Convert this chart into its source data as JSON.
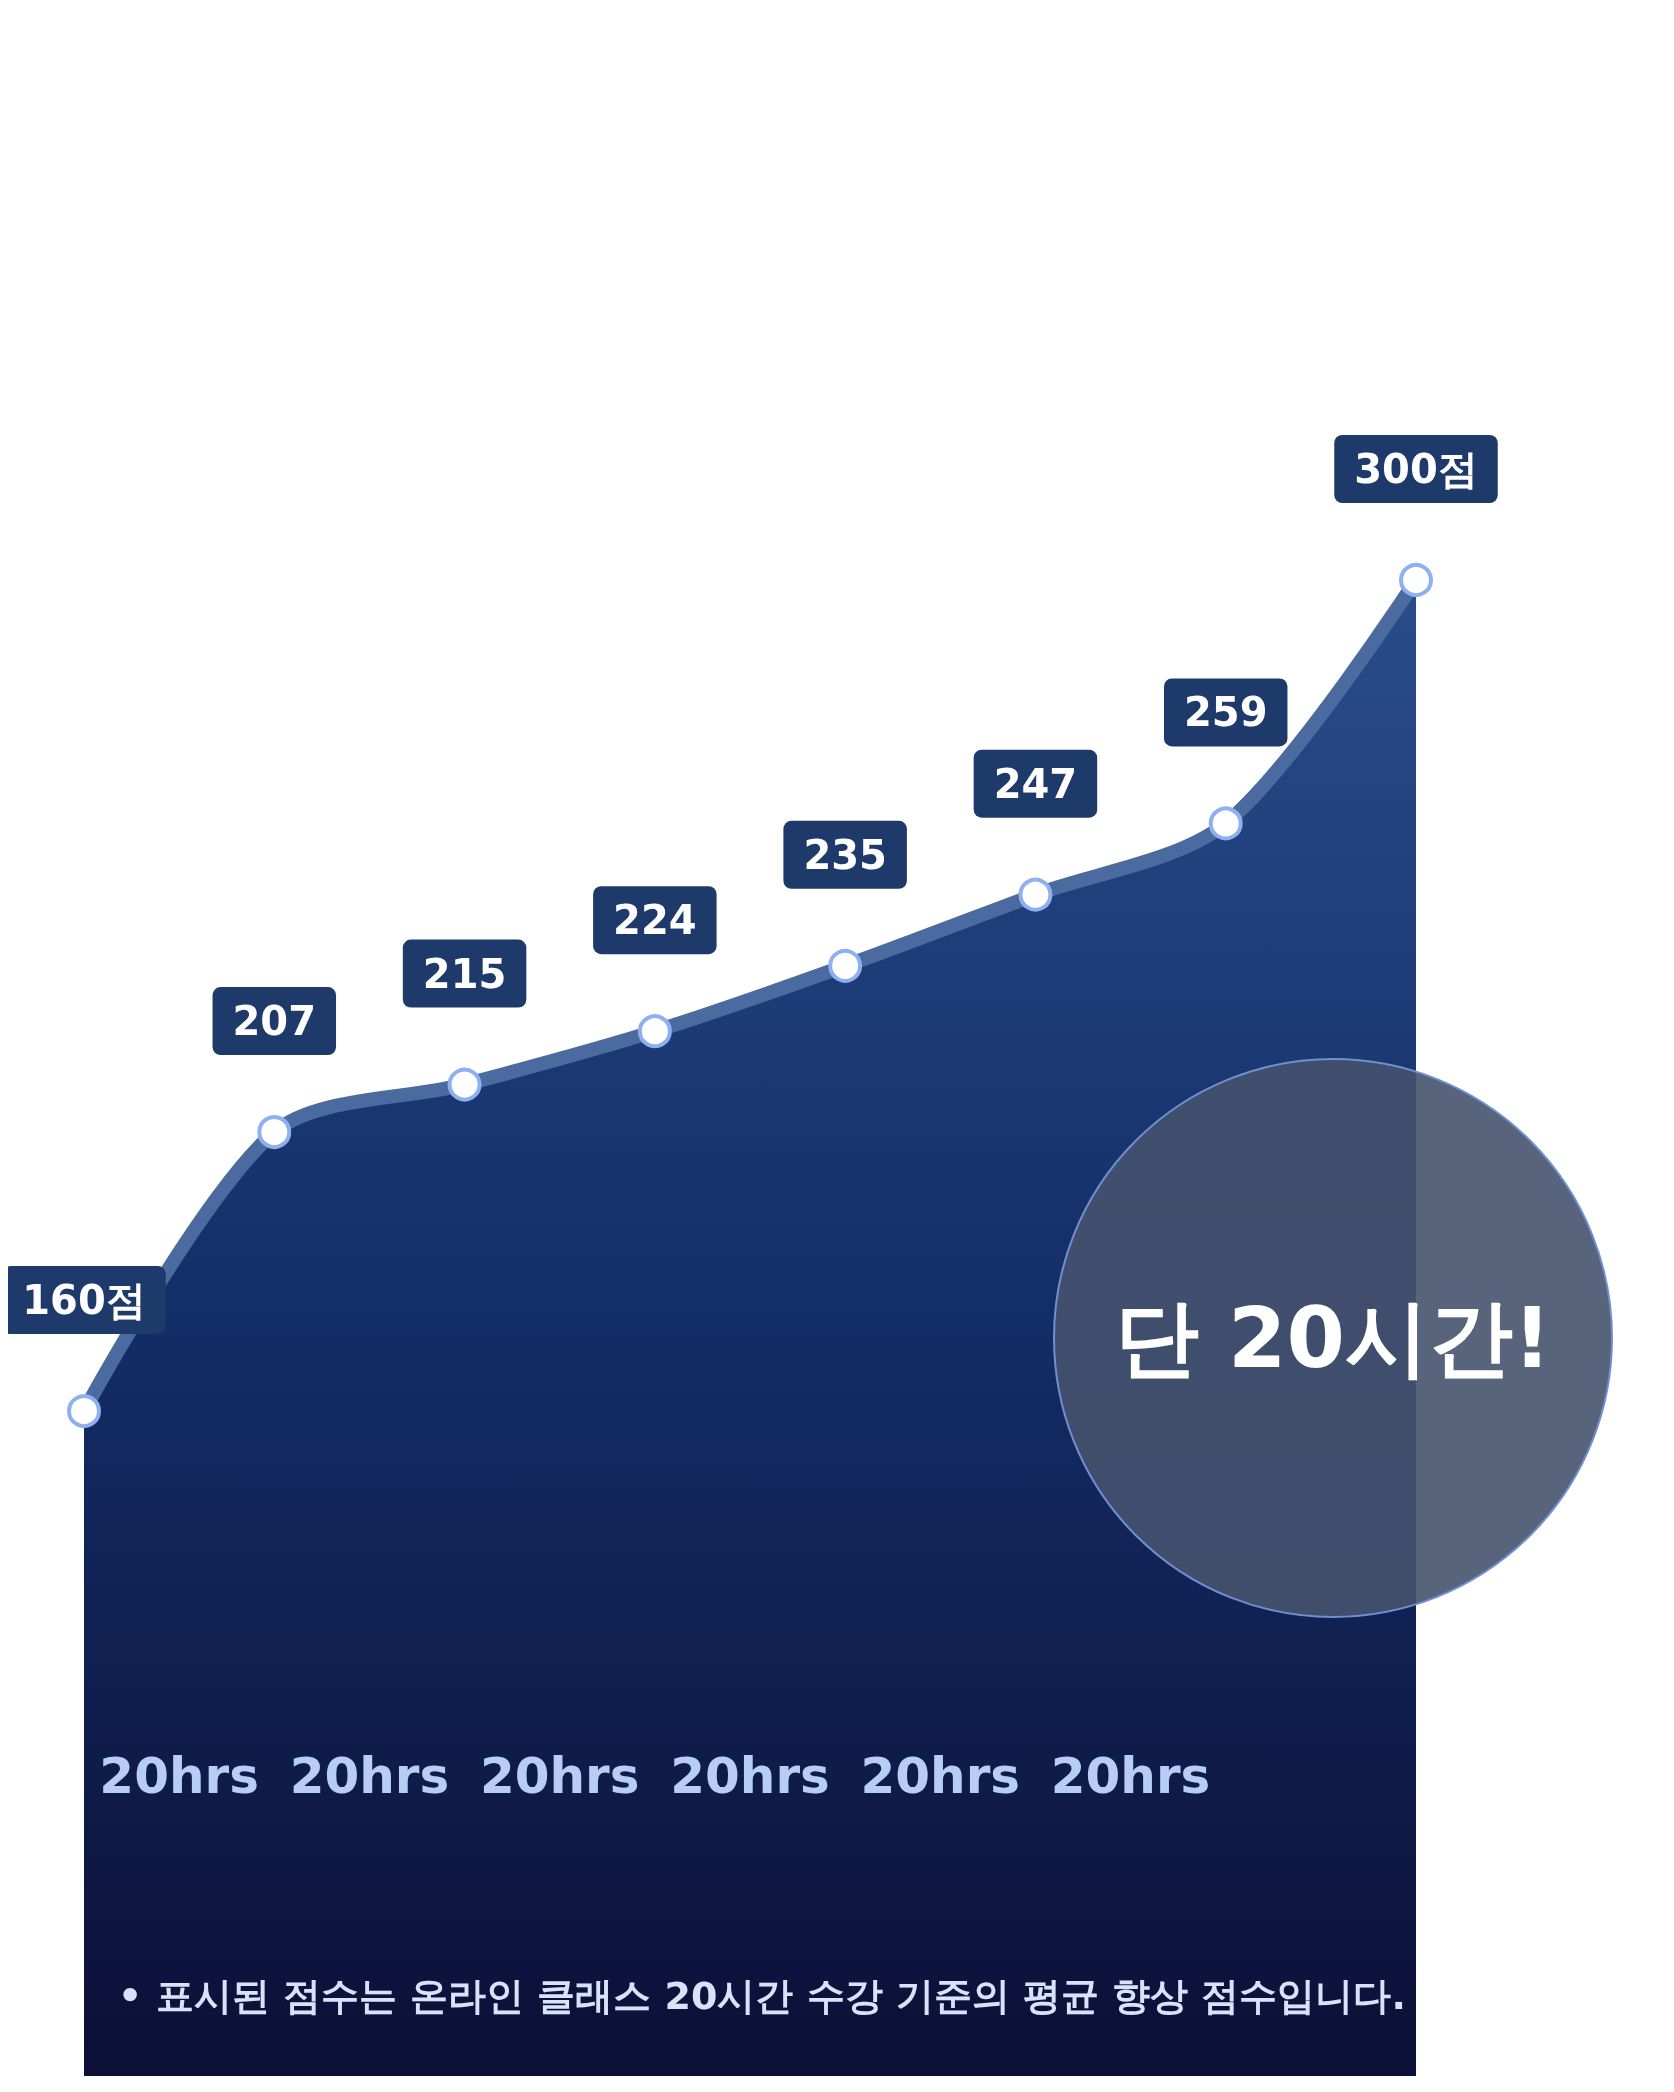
{
  "chart_data": {
    "type": "area",
    "categories": [
      null,
      null,
      null,
      null,
      null,
      null,
      null,
      null
    ],
    "series": [
      {
        "color": "#4a6aa0",
        "values": [
          160,
          207,
          215,
          224,
          235,
          247,
          259,
          300
        ],
        "value_labels": [
          "160점",
          "207",
          "215",
          "224",
          "235",
          "247",
          "259",
          "300점"
        ]
      }
    ],
    "annotations": [
      "20hrs",
      "20hrs",
      "20hrs",
      "20hrs",
      "20hrs",
      "20hrs",
      "단 20시간!",
      "• 표시된 점수는 온라인 클래스 20시간 수강 기준의 평균 향상 점수입니다."
    ],
    "marker": "circle",
    "grid": false
  }
}
